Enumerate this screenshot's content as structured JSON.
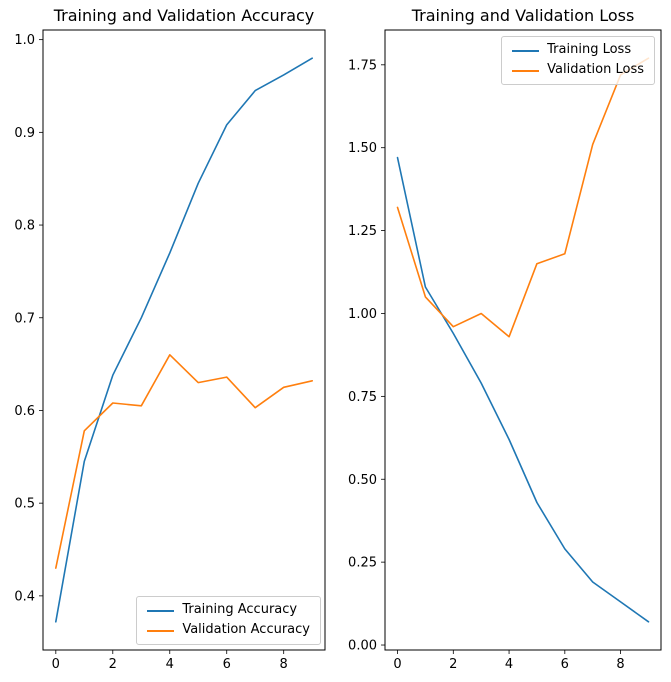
{
  "figure": {
    "background": "#ffffff",
    "text_color": "#000000",
    "axes_color": "#000000"
  },
  "colors": {
    "training": "#1f77b4",
    "validation": "#ff7f0e",
    "legend_border": "#cccccc"
  },
  "chart_data": [
    {
      "id": "accuracy",
      "type": "line",
      "title": "Training and Validation Accuracy",
      "xlabel": "",
      "ylabel": "",
      "x": [
        0,
        1,
        2,
        3,
        4,
        5,
        6,
        7,
        8,
        9
      ],
      "series": [
        {
          "name": "Training Accuracy",
          "color": "#1f77b4",
          "values": [
            0.372,
            0.545,
            0.638,
            0.7,
            0.77,
            0.845,
            0.908,
            0.945,
            0.962,
            0.98
          ]
        },
        {
          "name": "Validation Accuracy",
          "color": "#ff7f0e",
          "values": [
            0.43,
            0.578,
            0.608,
            0.605,
            0.66,
            0.63,
            0.636,
            0.603,
            0.625,
            0.632
          ]
        }
      ],
      "xlim": [
        -0.45,
        9.45
      ],
      "ylim": [
        0.3416,
        1.0104
      ],
      "xticks": [
        0,
        2,
        4,
        6,
        8
      ],
      "xtick_labels": [
        "0",
        "2",
        "4",
        "6",
        "8"
      ],
      "yticks": [
        0.4,
        0.5,
        0.6,
        0.7,
        0.8,
        0.9,
        1.0
      ],
      "ytick_labels": [
        "0.4",
        "0.5",
        "0.6",
        "0.7",
        "0.8",
        "0.9",
        "1.0"
      ],
      "grid": false,
      "legend_position": "lower right"
    },
    {
      "id": "loss",
      "type": "line",
      "title": "Training and Validation Loss",
      "xlabel": "",
      "ylabel": "",
      "x": [
        0,
        1,
        2,
        3,
        4,
        5,
        6,
        7,
        8,
        9
      ],
      "series": [
        {
          "name": "Training Loss",
          "color": "#1f77b4",
          "values": [
            1.47,
            1.08,
            0.94,
            0.79,
            0.62,
            0.43,
            0.29,
            0.19,
            0.13,
            0.07
          ]
        },
        {
          "name": "Validation Loss",
          "color": "#ff7f0e",
          "values": [
            1.32,
            1.05,
            0.96,
            1.0,
            0.93,
            1.15,
            1.18,
            1.51,
            1.72,
            1.77
          ]
        }
      ],
      "xlim": [
        -0.45,
        9.45
      ],
      "ylim": [
        -0.015,
        1.855
      ],
      "xticks": [
        0,
        2,
        4,
        6,
        8
      ],
      "xtick_labels": [
        "0",
        "2",
        "4",
        "6",
        "8"
      ],
      "yticks": [
        0.0,
        0.25,
        0.5,
        0.75,
        1.0,
        1.25,
        1.5,
        1.75
      ],
      "ytick_labels": [
        "0.00",
        "0.25",
        "0.50",
        "0.75",
        "1.00",
        "1.25",
        "1.50",
        "1.75"
      ],
      "grid": false,
      "legend_position": "upper right"
    }
  ]
}
